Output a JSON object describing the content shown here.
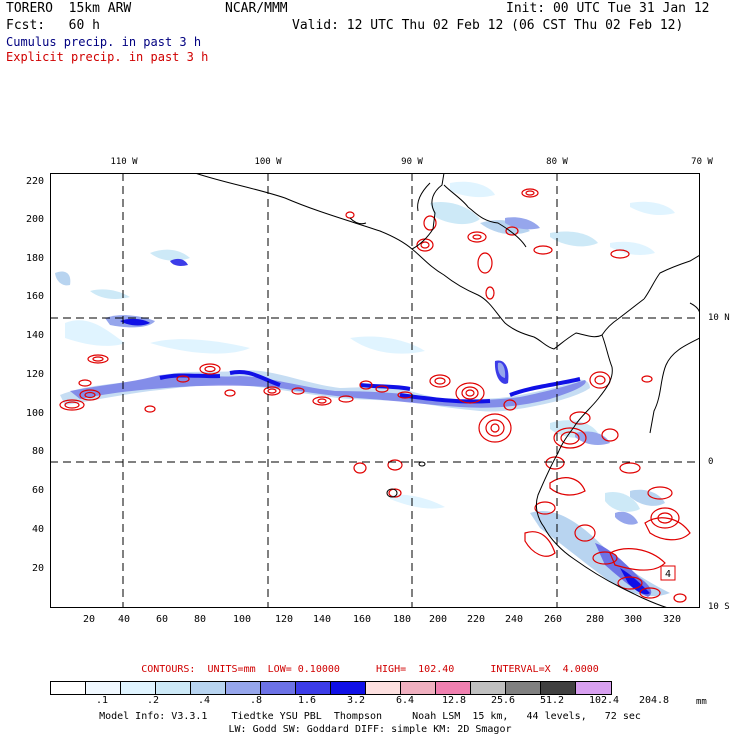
{
  "header": {
    "model": "TORERO  15km ARW",
    "org": "NCAR/MMM",
    "init": "Init: 00 UTC Tue 31 Jan 12",
    "fcst": "Fcst:   60 h",
    "valid": "Valid: 12 UTC Thu 02 Feb 12 (06 CST Thu 02 Feb 12)",
    "field1": "Cumulus precip. in past 3 h",
    "field2": "Explicit precip. in past 3 h",
    "field1_color": "#000080",
    "field2_color": "#d00000"
  },
  "map": {
    "lon_labels": [
      "110 W",
      "100 W",
      "90 W",
      "80 W",
      "70 W"
    ],
    "lat_labels": [
      "10 N",
      "0",
      "10 S"
    ],
    "y_ticks": [
      "220",
      "200",
      "180",
      "160",
      "140",
      "120",
      "100",
      "80",
      "60",
      "40",
      "20"
    ],
    "x_ticks": [
      "20",
      "40",
      "60",
      "80",
      "100",
      "120",
      "140",
      "160",
      "180",
      "200",
      "220",
      "240",
      "260",
      "280",
      "300",
      "320"
    ],
    "box_label": "4"
  },
  "legend": {
    "contours_text": "CONTOURS:  UNITS=mm  LOW= 0.10000      HIGH=  102.40      INTERVAL=X  4.0000",
    "colors": [
      "#ffffff",
      "#f0f8ff",
      "#e0f4ff",
      "#cde9f7",
      "#b8d4f0",
      "#96a6ec",
      "#6c72e6",
      "#3c3ce8",
      "#1010e6",
      "#fde0e0",
      "#f0b0c0",
      "#f080b0",
      "#c0c0c0",
      "#808080",
      "#404040",
      "#d8a0f0"
    ],
    "labels": [
      ".1",
      ".2",
      ".4",
      ".8",
      "1.6",
      "3.2",
      "6.4",
      "12.8",
      "25.6",
      "51.2",
      "102.4",
      "204.8"
    ],
    "units": "mm"
  },
  "footer": {
    "line1": "Model Info: V3.3.1    Tiedtke YSU PBL  Thompson     Noah LSM  15 km,   44 levels,   72 sec",
    "line2": "LW: Godd SW: Goddard DIFF: simple KM: 2D Smagor"
  }
}
